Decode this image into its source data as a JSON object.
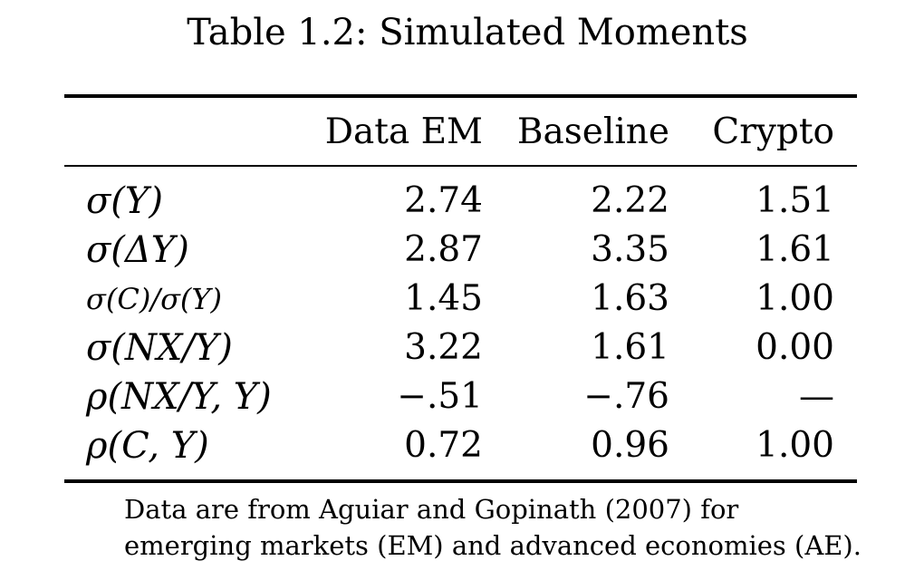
{
  "caption": "Table 1.2: Simulated Moments",
  "columns": [
    "Data EM",
    "Baseline",
    "Crypto"
  ],
  "rows": [
    {
      "label": "σ(Y)",
      "values": [
        "2.74",
        "2.22",
        "1.51"
      ]
    },
    {
      "label": "σ(ΔY)",
      "values": [
        "2.87",
        "3.35",
        "1.61"
      ]
    },
    {
      "label": "σ(C)/σ(Y)",
      "values": [
        "1.45",
        "1.63",
        "1.00"
      ]
    },
    {
      "label": "σ(NX/Y)",
      "values": [
        "3.22",
        "1.61",
        "0.00"
      ]
    },
    {
      "label": "ρ(NX/Y, Y)",
      "values": [
        "−.51",
        "−.76",
        "—"
      ]
    },
    {
      "label": "ρ(C, Y)",
      "values": [
        "0.72",
        "0.96",
        "1.00"
      ]
    }
  ],
  "footnote": "Data are from Aguiar and Gopinath (2007) for emerging markets (EM) and advanced economies (AE)."
}
